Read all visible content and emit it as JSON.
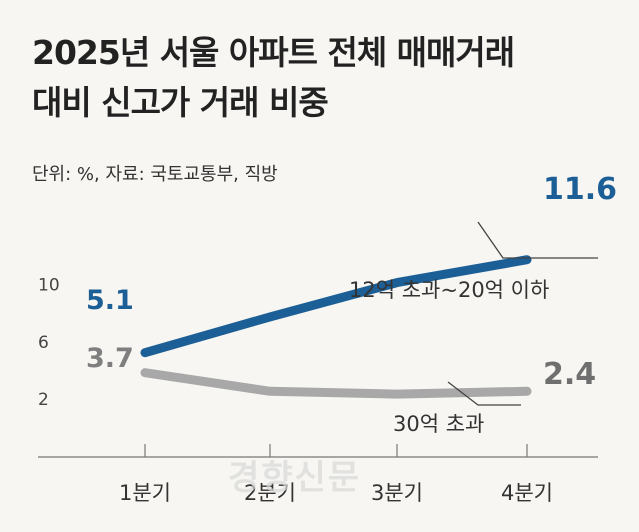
{
  "title_lines": [
    "2025년 서울 아파트 전체 매매거래",
    "대비 신고가 거래 비중"
  ],
  "unit_note": "단위: %, 자료: 국토교통부, 직방",
  "watermark": "경향신문",
  "chart_data": {
    "type": "line",
    "categories": [
      "1분기",
      "2분기",
      "3분기",
      "4분기"
    ],
    "y_ticks": [
      2,
      6,
      10
    ],
    "ylim": [
      0,
      13
    ],
    "grid": false,
    "series": [
      {
        "name": "12억 초과~20억 이하",
        "values": [
          5.1,
          7.6,
          10.0,
          11.6
        ],
        "color": "#1c5f96",
        "start_label": "5.1",
        "end_label": "11.6"
      },
      {
        "name": "30억 초과",
        "values": [
          3.7,
          2.4,
          2.2,
          2.4
        ],
        "color": "#a8a8a8",
        "start_label": "3.7",
        "end_label": "2.4"
      }
    ]
  }
}
